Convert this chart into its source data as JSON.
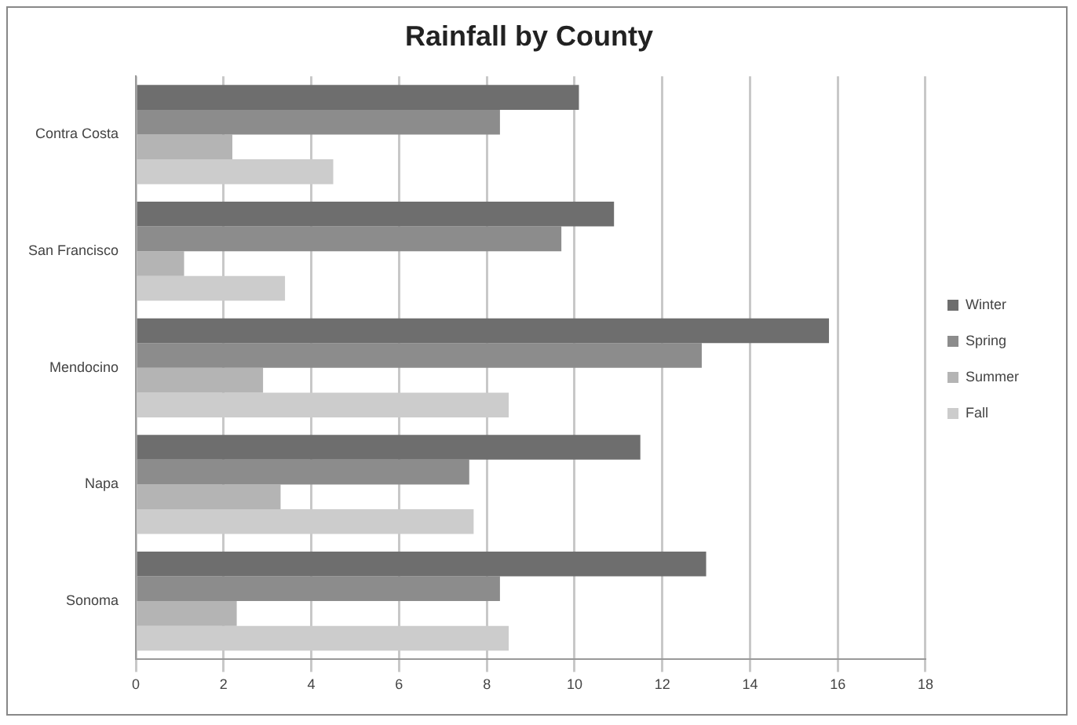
{
  "chart_data": {
    "type": "bar",
    "orientation": "horizontal",
    "title": "Rainfall by County",
    "categories": [
      "Contra Costa",
      "San Francisco",
      "Mendocino",
      "Napa",
      "Sonoma"
    ],
    "series": [
      {
        "name": "Winter",
        "color": "#6e6e6e",
        "values": [
          10.1,
          10.9,
          15.8,
          11.5,
          13.0
        ]
      },
      {
        "name": "Spring",
        "color": "#8c8c8c",
        "values": [
          8.3,
          9.7,
          12.9,
          7.6,
          8.3
        ]
      },
      {
        "name": "Summer",
        "color": "#b4b4b4",
        "values": [
          2.2,
          1.1,
          2.9,
          3.3,
          2.3
        ]
      },
      {
        "name": "Fall",
        "color": "#cccccc",
        "values": [
          4.5,
          3.4,
          8.5,
          7.7,
          8.5
        ]
      }
    ],
    "xlim": [
      0,
      18
    ],
    "xticks": [
      0,
      2,
      4,
      6,
      8,
      10,
      12,
      14,
      16,
      18
    ],
    "grid": "x",
    "legend": "right"
  }
}
